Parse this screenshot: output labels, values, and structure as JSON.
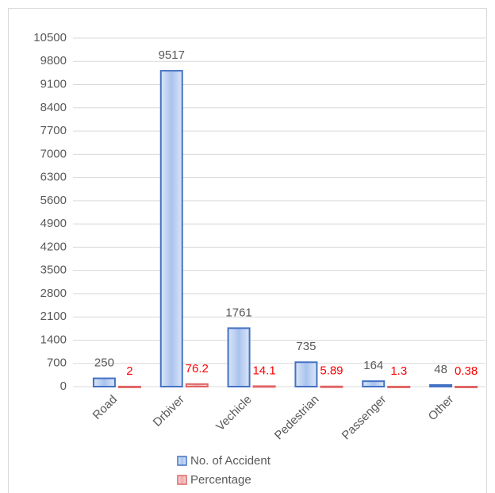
{
  "chart_data": {
    "type": "bar",
    "categories": [
      "Road",
      "Drbiver",
      "Vechicle",
      "Pedestrian",
      "Passenger",
      "Other"
    ],
    "series": [
      {
        "name": "No. of Accident",
        "color": "#4472c4",
        "label_color": "#595959",
        "values": [
          250,
          9517,
          1761,
          735,
          164,
          48
        ]
      },
      {
        "name": "Percentage",
        "color": "#e06666",
        "label_color": "#ff0000",
        "values": [
          2,
          76.2,
          14.1,
          5.89,
          1.3,
          0.38
        ]
      }
    ],
    "ylim": [
      0,
      10500
    ],
    "yticks": [
      0,
      700,
      1400,
      2100,
      2800,
      3500,
      4200,
      4900,
      5600,
      6300,
      7000,
      7700,
      8400,
      9100,
      9800,
      10500
    ],
    "grid": true,
    "legend": "bottom"
  }
}
